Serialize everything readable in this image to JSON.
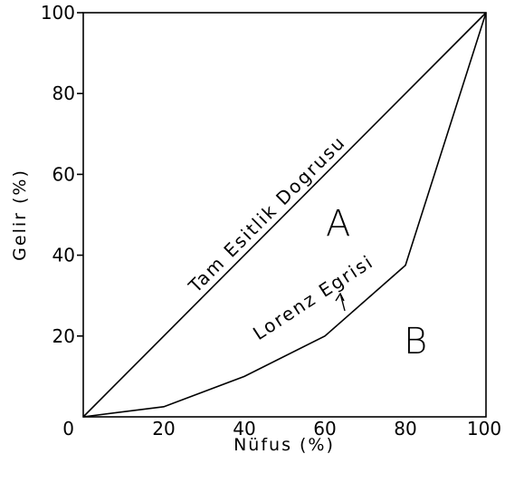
{
  "chart_data": {
    "type": "line",
    "xlabel": "Nüfus (%)",
    "ylabel": "Gelir (%)",
    "xlim": [
      0,
      100
    ],
    "ylim": [
      0,
      100
    ],
    "xticks": [
      "0",
      "20",
      "40",
      "60",
      "80",
      "100"
    ],
    "yticks": [
      "20",
      "40",
      "60",
      "80",
      "100"
    ],
    "grid": false,
    "series": [
      {
        "name": "Tam Esitlik Dogrusu",
        "x": [
          0,
          100
        ],
        "y": [
          0,
          100
        ]
      },
      {
        "name": "Lorenz Egrisi",
        "x": [
          0,
          20,
          40,
          60,
          80,
          100
        ],
        "y": [
          0,
          2.5,
          10,
          20,
          37.5,
          100
        ]
      }
    ],
    "annotations": {
      "equality_label": "Tam Esitlik Dogrusu",
      "lorenz_label": "Lorenz Egrisi",
      "region_a": "A",
      "region_b": "B"
    }
  }
}
